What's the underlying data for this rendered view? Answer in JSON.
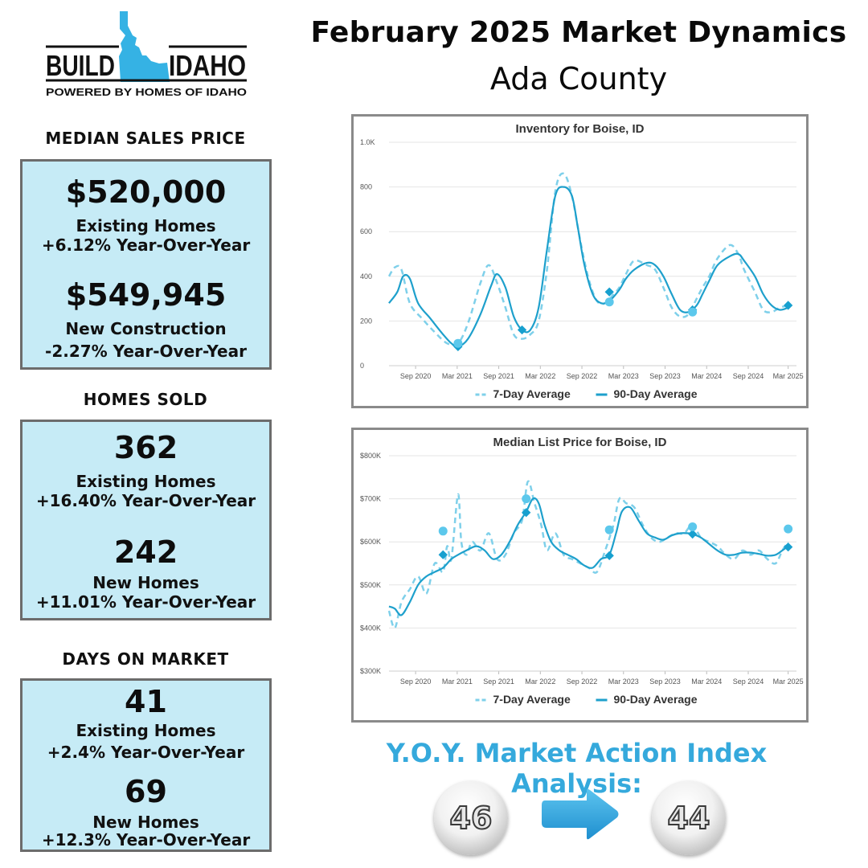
{
  "header": {
    "title": "February 2025 Market Dynamics",
    "subtitle": "Ada County"
  },
  "logo": {
    "word_left": "BUILD",
    "word_right": "IDAHO",
    "tagline": "POWERED BY HOMES OF IDAHO"
  },
  "median_sales_price": {
    "heading": "MEDIAN SALES PRICE",
    "existing_value": "$520,000",
    "existing_label": "Existing Homes",
    "existing_change": "+6.12% Year-Over-Year",
    "new_value": "$549,945",
    "new_label": "New Construction",
    "new_change": "-2.27% Year-Over-Year"
  },
  "homes_sold": {
    "heading": "HOMES SOLD",
    "existing_value": "362",
    "existing_label": "Existing Homes",
    "existing_change": "+16.40% Year-Over-Year",
    "new_value": "242",
    "new_label": "New Homes",
    "new_change": "+11.01% Year-Over-Year"
  },
  "days_on_market": {
    "heading": "DAYS ON MARKET",
    "existing_value": "41",
    "existing_label": "Existing Homes",
    "existing_change": "+2.4% Year-Over-Year",
    "new_value": "69",
    "new_label": "New Homes",
    "new_change": "+12.3% Year-Over-Year"
  },
  "market_action": {
    "title": "Y.O.Y. Market Action Index Analysis:",
    "previous": "46",
    "current": "44"
  },
  "colors": {
    "accent": "#35a9dc",
    "panel_bg": "#c6ebf6",
    "line_dark": "#1ea0cc",
    "line_light": "#7fd0ea"
  },
  "chart_data": [
    {
      "type": "line",
      "title": "Inventory for Boise, ID",
      "x_ticks": [
        "Sep 2020",
        "Mar 2021",
        "Sep 2021",
        "Mar 2022",
        "Sep 2022",
        "Mar 2023",
        "Sep 2023",
        "Mar 2024",
        "Sep 2024",
        "Mar 2025"
      ],
      "y_ticks": [
        "0",
        "200",
        "400",
        "600",
        "800",
        "1.0K"
      ],
      "ylim": [
        0,
        1000
      ],
      "xlim": [
        2020.35,
        2025.25
      ],
      "legend": [
        "7-Day Average",
        "90-Day Average"
      ],
      "legend_position": "bottom",
      "grid": true,
      "series": [
        {
          "name": "7-Day Average",
          "style": "dashed",
          "x": [
            2020.35,
            2020.42,
            2020.5,
            2020.6,
            2020.75,
            2020.9,
            2021.05,
            2021.18,
            2021.3,
            2021.45,
            2021.55,
            2021.65,
            2021.75,
            2021.85,
            2021.95,
            2022.05,
            2022.15,
            2022.25,
            2022.35,
            2022.45,
            2022.55,
            2022.65,
            2022.75,
            2022.85,
            2022.95,
            2023.05,
            2023.12,
            2023.2,
            2023.3,
            2023.45,
            2023.55,
            2023.65,
            2023.75,
            2023.85,
            2023.95,
            2024.05,
            2024.12,
            2024.2,
            2024.3,
            2024.45,
            2024.55,
            2024.62,
            2024.75,
            2024.85,
            2024.95,
            2025.05,
            2025.15
          ],
          "y": [
            400,
            440,
            430,
            280,
            210,
            150,
            100,
            100,
            190,
            370,
            450,
            370,
            260,
            140,
            120,
            140,
            200,
            430,
            780,
            860,
            760,
            560,
            390,
            290,
            280,
            320,
            350,
            410,
            470,
            450,
            430,
            350,
            260,
            220,
            230,
            300,
            350,
            400,
            480,
            540,
            500,
            430,
            330,
            250,
            240,
            260,
            270
          ]
        },
        {
          "name": "90-Day Average",
          "style": "solid",
          "x": [
            2020.35,
            2020.45,
            2020.52,
            2020.6,
            2020.7,
            2020.85,
            2021.0,
            2021.1,
            2021.18,
            2021.3,
            2021.45,
            2021.58,
            2021.65,
            2021.75,
            2021.85,
            2021.95,
            2022.05,
            2022.15,
            2022.25,
            2022.35,
            2022.45,
            2022.55,
            2022.62,
            2022.7,
            2022.8,
            2022.9,
            2023.0,
            2023.12,
            2023.2,
            2023.3,
            2023.45,
            2023.55,
            2023.65,
            2023.75,
            2023.85,
            2023.95,
            2024.05,
            2024.12,
            2024.2,
            2024.3,
            2024.45,
            2024.55,
            2024.62,
            2024.75,
            2024.85,
            2024.95,
            2025.05,
            2025.15
          ],
          "y": [
            280,
            330,
            400,
            390,
            280,
            210,
            140,
            100,
            85,
            120,
            230,
            360,
            410,
            350,
            220,
            160,
            160,
            260,
            520,
            760,
            800,
            760,
            620,
            450,
            320,
            280,
            290,
            340,
            390,
            430,
            460,
            450,
            400,
            320,
            250,
            240,
            270,
            320,
            380,
            450,
            490,
            500,
            470,
            400,
            320,
            270,
            250,
            260
          ]
        }
      ],
      "markers": [
        {
          "x": 2021.18,
          "y": 85,
          "shape": "diamond"
        },
        {
          "x": 2021.18,
          "y": 100,
          "shape": "circle"
        },
        {
          "x": 2021.95,
          "y": 160,
          "shape": "diamond"
        },
        {
          "x": 2023.0,
          "y": 330,
          "shape": "diamond"
        },
        {
          "x": 2023.0,
          "y": 285,
          "shape": "circle"
        },
        {
          "x": 2024.0,
          "y": 250,
          "shape": "diamond"
        },
        {
          "x": 2024.0,
          "y": 240,
          "shape": "circle"
        },
        {
          "x": 2025.15,
          "y": 270,
          "shape": "diamond"
        }
      ]
    },
    {
      "type": "line",
      "title": "Median List Price for Boise, ID",
      "x_ticks": [
        "Sep 2020",
        "Mar 2021",
        "Sep 2021",
        "Mar 2022",
        "Sep 2022",
        "Mar 2023",
        "Sep 2023",
        "Mar 2024",
        "Sep 2024",
        "Mar 2025"
      ],
      "y_ticks": [
        "$300K",
        "$400K",
        "$500K",
        "$600K",
        "$700K",
        "$800K"
      ],
      "ylim": [
        300000,
        800000
      ],
      "xlim": [
        2020.35,
        2025.25
      ],
      "legend": [
        "7-Day Average",
        "90-Day Average"
      ],
      "legend_position": "bottom",
      "grid": true,
      "series": [
        {
          "name": "7-Day Average",
          "style": "dashed",
          "x": [
            2020.35,
            2020.42,
            2020.5,
            2020.6,
            2020.7,
            2020.8,
            2020.9,
            2021.0,
            2021.05,
            2021.1,
            2021.18,
            2021.22,
            2021.28,
            2021.35,
            2021.45,
            2021.55,
            2021.65,
            2021.75,
            2021.85,
            2021.95,
            2022.02,
            2022.1,
            2022.18,
            2022.25,
            2022.35,
            2022.45,
            2022.55,
            2022.65,
            2022.75,
            2022.85,
            2022.95,
            2023.05,
            2023.12,
            2023.2,
            2023.3,
            2023.4,
            2023.5,
            2023.6,
            2023.7,
            2023.8,
            2023.9,
            2024.0,
            2024.1,
            2024.2,
            2024.3,
            2024.4,
            2024.5,
            2024.6,
            2024.7,
            2024.8,
            2024.9,
            2025.0,
            2025.08,
            2025.15
          ],
          "y": [
            440000,
            400000,
            460000,
            490000,
            520000,
            480000,
            550000,
            530000,
            590000,
            560000,
            710000,
            600000,
            570000,
            600000,
            580000,
            620000,
            560000,
            570000,
            620000,
            650000,
            740000,
            690000,
            640000,
            580000,
            620000,
            570000,
            560000,
            550000,
            540000,
            530000,
            580000,
            640000,
            700000,
            690000,
            680000,
            640000,
            610000,
            600000,
            610000,
            620000,
            620000,
            640000,
            610000,
            600000,
            590000,
            570000,
            560000,
            580000,
            570000,
            580000,
            560000,
            550000,
            580000,
            600000
          ]
        },
        {
          "name": "90-Day Average",
          "style": "solid",
          "x": [
            2020.35,
            2020.42,
            2020.5,
            2020.6,
            2020.7,
            2020.8,
            2020.9,
            2021.0,
            2021.1,
            2021.18,
            2021.28,
            2021.4,
            2021.5,
            2021.6,
            2021.7,
            2021.8,
            2021.9,
            2022.0,
            2022.08,
            2022.15,
            2022.22,
            2022.3,
            2022.4,
            2022.5,
            2022.6,
            2022.7,
            2022.8,
            2022.9,
            2023.0,
            2023.08,
            2023.15,
            2023.25,
            2023.35,
            2023.45,
            2023.55,
            2023.65,
            2023.75,
            2023.85,
            2023.95,
            2024.0,
            2024.1,
            2024.2,
            2024.3,
            2024.4,
            2024.5,
            2024.6,
            2024.7,
            2024.8,
            2024.9,
            2025.0,
            2025.08,
            2025.15
          ],
          "y": [
            450000,
            445000,
            430000,
            460000,
            500000,
            520000,
            530000,
            540000,
            560000,
            570000,
            580000,
            590000,
            580000,
            560000,
            570000,
            600000,
            640000,
            670000,
            700000,
            690000,
            640000,
            600000,
            580000,
            570000,
            560000,
            545000,
            540000,
            560000,
            570000,
            620000,
            670000,
            680000,
            650000,
            620000,
            610000,
            605000,
            615000,
            620000,
            620000,
            618000,
            610000,
            595000,
            580000,
            570000,
            570000,
            575000,
            575000,
            572000,
            568000,
            570000,
            580000,
            590000
          ]
        }
      ],
      "markers": [
        {
          "x": 2021.0,
          "y": 570000,
          "shape": "diamond"
        },
        {
          "x": 2021.0,
          "y": 625000,
          "shape": "circle"
        },
        {
          "x": 2022.0,
          "y": 668000,
          "shape": "diamond"
        },
        {
          "x": 2022.0,
          "y": 700000,
          "shape": "circle"
        },
        {
          "x": 2023.0,
          "y": 568000,
          "shape": "diamond"
        },
        {
          "x": 2023.0,
          "y": 628000,
          "shape": "circle"
        },
        {
          "x": 2024.0,
          "y": 618000,
          "shape": "diamond"
        },
        {
          "x": 2024.0,
          "y": 635000,
          "shape": "circle"
        },
        {
          "x": 2025.15,
          "y": 588000,
          "shape": "diamond"
        },
        {
          "x": 2025.15,
          "y": 630000,
          "shape": "circle"
        }
      ]
    }
  ]
}
